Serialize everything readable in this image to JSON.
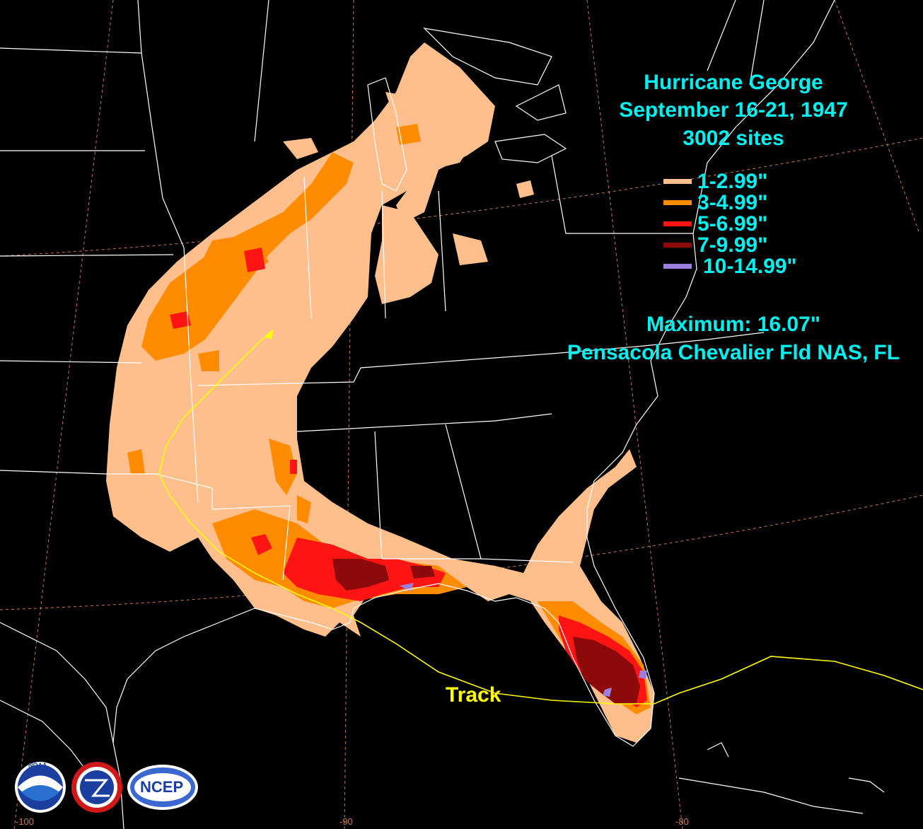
{
  "title": {
    "name": "Hurricane George",
    "dates": "September 16-21, 1947",
    "sites": "3002 sites"
  },
  "legend": [
    {
      "label": "1-2.99\"",
      "color": "#ffbf8c"
    },
    {
      "label": "3-4.99\"",
      "color": "#ff8c00"
    },
    {
      "label": "5-6.99\"",
      "color": "#ff1414"
    },
    {
      "label": "7-9.99\"",
      "color": "#8c0a0a"
    },
    {
      "label": "10-14.99\"",
      "color": "#9b7ee0"
    }
  ],
  "maximum": {
    "value_text": "Maximum: 16.07\"",
    "station": "Pensacola Chevalier Fld NAS, FL"
  },
  "track": {
    "label": "Track",
    "color": "#ffff00"
  },
  "longitude_labels": [
    "-100",
    "-90",
    "-80"
  ],
  "logos": [
    {
      "name": "noaa-logo",
      "text": "NOAA"
    },
    {
      "name": "nws-logo",
      "text": "NATIONAL WEATHER SERVICE"
    },
    {
      "name": "ncep-logo",
      "text": "NCEP"
    }
  ],
  "colors": {
    "background": "#000000",
    "boundaries": "#ffffff",
    "graticule": "#c87850",
    "text": "#00f0f0"
  }
}
